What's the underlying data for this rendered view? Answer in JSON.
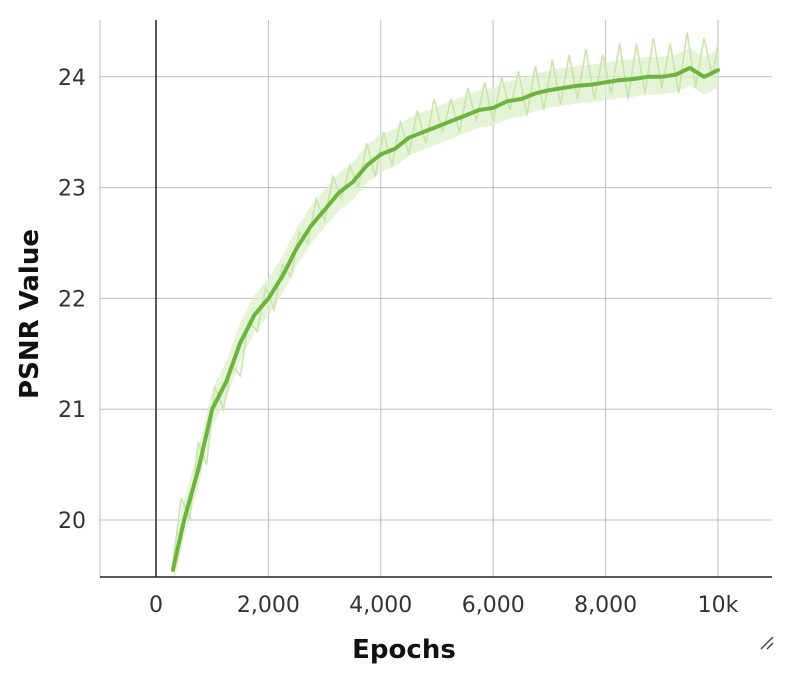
{
  "chart_data": {
    "type": "line",
    "title": "",
    "xlabel": "Epochs",
    "ylabel": "PSNR Value",
    "xlim": [
      -1000,
      11000
    ],
    "ylim": [
      19.5,
      24.6
    ],
    "xticks": [
      0,
      2000,
      4000,
      6000,
      8000,
      10000
    ],
    "xtick_labels": [
      "0",
      "2,000",
      "4,000",
      "6,000",
      "8,000",
      "10k"
    ],
    "yticks": [
      20,
      21,
      22,
      23,
      24
    ],
    "ytick_labels": [
      "20",
      "21",
      "22",
      "23",
      "24"
    ],
    "grid": true,
    "legend": "none",
    "colors": {
      "smoothed": "#6db33f",
      "raw_band": "#dcefc8",
      "raw_line": "#c9e5ad",
      "axis": "#222222"
    },
    "series": [
      {
        "role": "smoothed",
        "x": [
          300,
          500,
          750,
          1000,
          1250,
          1500,
          1750,
          2000,
          2250,
          2500,
          2750,
          3000,
          3250,
          3500,
          3750,
          4000,
          4250,
          4500,
          4750,
          5000,
          5250,
          5500,
          5750,
          6000,
          6250,
          6500,
          6750,
          7000,
          7250,
          7500,
          7750,
          8000,
          8250,
          8500,
          8750,
          9000,
          9250,
          9500,
          9750,
          10000
        ],
        "y": [
          19.55,
          20.0,
          20.45,
          21.0,
          21.25,
          21.6,
          21.85,
          22.0,
          22.2,
          22.45,
          22.65,
          22.8,
          22.95,
          23.05,
          23.2,
          23.3,
          23.35,
          23.45,
          23.5,
          23.55,
          23.6,
          23.65,
          23.7,
          23.72,
          23.78,
          23.8,
          23.85,
          23.88,
          23.9,
          23.92,
          23.93,
          23.95,
          23.97,
          23.98,
          24.0,
          24.0,
          24.02,
          24.08,
          24.0,
          24.06
        ]
      },
      {
        "role": "raw",
        "x": [
          300,
          450,
          600,
          750,
          900,
          1050,
          1200,
          1350,
          1500,
          1650,
          1800,
          1950,
          2100,
          2250,
          2400,
          2550,
          2700,
          2850,
          3000,
          3150,
          3300,
          3450,
          3600,
          3750,
          3900,
          4050,
          4200,
          4350,
          4500,
          4650,
          4800,
          4950,
          5100,
          5250,
          5400,
          5550,
          5700,
          5850,
          6000,
          6150,
          6300,
          6450,
          6600,
          6750,
          6900,
          7050,
          7200,
          7350,
          7500,
          7650,
          7800,
          7950,
          8100,
          8250,
          8400,
          8550,
          8700,
          8850,
          9000,
          9150,
          9300,
          9450,
          9600,
          9750,
          9900,
          10000
        ],
        "y": [
          19.6,
          20.2,
          20.0,
          20.7,
          20.5,
          21.2,
          21.0,
          21.4,
          21.3,
          21.8,
          21.7,
          22.1,
          21.9,
          22.3,
          22.2,
          22.6,
          22.5,
          22.9,
          22.7,
          23.1,
          22.9,
          23.2,
          23.0,
          23.4,
          23.1,
          23.5,
          23.2,
          23.6,
          23.3,
          23.7,
          23.4,
          23.8,
          23.5,
          23.8,
          23.5,
          23.9,
          23.6,
          23.95,
          23.6,
          24.0,
          23.7,
          24.05,
          23.65,
          24.1,
          23.7,
          24.15,
          23.75,
          24.2,
          23.8,
          24.25,
          23.8,
          24.2,
          23.85,
          24.3,
          23.8,
          24.3,
          23.85,
          24.35,
          23.9,
          24.3,
          23.85,
          24.4,
          23.9,
          24.35,
          24.0,
          24.3
        ]
      }
    ]
  },
  "ui": {
    "resize_handle_icon": "resize-grip-icon"
  }
}
